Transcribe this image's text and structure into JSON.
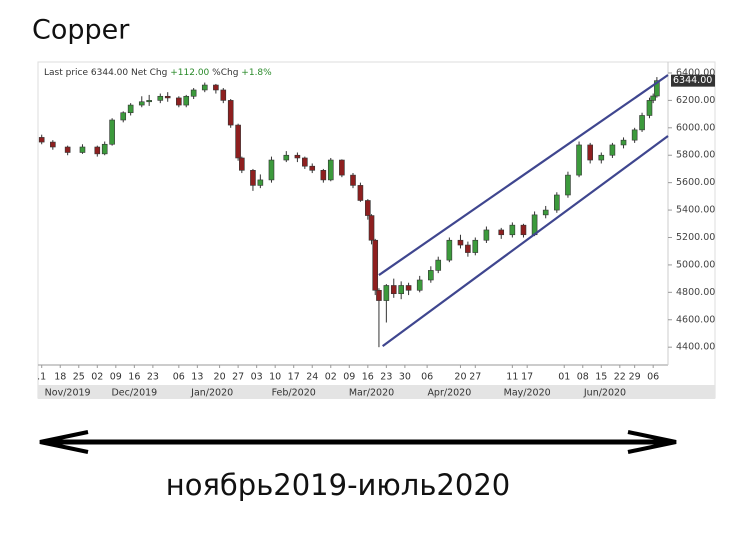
{
  "chart_data": {
    "type": "candlestick",
    "title": "Copper",
    "info": {
      "last_price_text": "Last price",
      "last_price": {
        "value": 6344,
        "label": "6344.00"
      },
      "net_chg_text": "Net Chg",
      "net_chg": {
        "value": 112,
        "label": "+112.00"
      },
      "pct_chg_text": "%Chg",
      "pct_chg": {
        "value": 1.8,
        "label": "+1.8%"
      }
    },
    "x": [
      1,
      4,
      8,
      12,
      16,
      18,
      20,
      23,
      25,
      28,
      30,
      33,
      35,
      38,
      40,
      42,
      45,
      48,
      50,
      52,
      54,
      55,
      58,
      60,
      63,
      67,
      70,
      72,
      74,
      77,
      79,
      82,
      85,
      87,
      89,
      90,
      91,
      92,
      94,
      96,
      98,
      100,
      103,
      106,
      108,
      111,
      114,
      116,
      118,
      121,
      125,
      128,
      131,
      134,
      137,
      140,
      143,
      146,
      149,
      152,
      155,
      158,
      161,
      163,
      165,
      166,
      167
    ],
    "open": [
      5930,
      5896,
      5860,
      5820,
      5860,
      5810,
      5880,
      6057,
      6110,
      6166,
      6190,
      6200,
      6230,
      6218,
      6166,
      6230,
      6276,
      6312,
      6276,
      6200,
      6020,
      5780,
      5690,
      5580,
      5620,
      5765,
      5800,
      5780,
      5720,
      5690,
      5620,
      5765,
      5655,
      5580,
      5470,
      5360,
      5180,
      4815,
      4740,
      4850,
      4790,
      4850,
      4815,
      4890,
      4960,
      5035,
      5180,
      5145,
      5090,
      5180,
      5255,
      5220,
      5290,
      5220,
      5365,
      5400,
      5510,
      5655,
      5875,
      5765,
      5800,
      5875,
      5910,
      5985,
      6090,
      6200,
      6232
    ],
    "high": [
      5950,
      5910,
      5870,
      5880,
      5870,
      5900,
      6070,
      6120,
      6180,
      6230,
      6240,
      6250,
      6260,
      6230,
      6240,
      6290,
      6330,
      6320,
      6290,
      6210,
      6030,
      5790,
      5700,
      5660,
      5790,
      5830,
      5820,
      5790,
      5740,
      5700,
      5780,
      5770,
      5670,
      5600,
      5480,
      5370,
      5190,
      4830,
      4860,
      4900,
      4880,
      4870,
      4920,
      4990,
      5060,
      5200,
      5220,
      5170,
      5200,
      5280,
      5270,
      5310,
      5300,
      5390,
      5430,
      5530,
      5680,
      5900,
      5890,
      5820,
      5890,
      5930,
      6000,
      6110,
      6220,
      6250,
      6370
    ],
    "low": [
      5880,
      5840,
      5800,
      5810,
      5790,
      5800,
      5870,
      6040,
      6090,
      6150,
      6160,
      6180,
      6190,
      6150,
      6150,
      6210,
      6260,
      6250,
      6180,
      6000,
      5760,
      5670,
      5540,
      5560,
      5600,
      5750,
      5750,
      5700,
      5670,
      5600,
      5610,
      5640,
      5560,
      5460,
      5330,
      5150,
      4780,
      4400,
      4580,
      4760,
      4750,
      4780,
      4800,
      4870,
      4940,
      5020,
      5120,
      5060,
      5070,
      5160,
      5190,
      5200,
      5200,
      5210,
      5340,
      5380,
      5490,
      5640,
      5740,
      5740,
      5780,
      5850,
      5890,
      5970,
      6070,
      6180,
      6220
    ],
    "close": [
      5896,
      5860,
      5820,
      5860,
      5810,
      5880,
      6057,
      6110,
      6166,
      6190,
      6200,
      6230,
      6218,
      6166,
      6230,
      6276,
      6312,
      6276,
      6200,
      6020,
      5780,
      5690,
      5580,
      5620,
      5765,
      5800,
      5780,
      5720,
      5690,
      5620,
      5765,
      5655,
      5580,
      5470,
      5360,
      5180,
      4815,
      4740,
      4850,
      4790,
      4850,
      4815,
      4890,
      4960,
      5035,
      5180,
      5145,
      5090,
      5180,
      5255,
      5220,
      5290,
      5220,
      5365,
      5400,
      5510,
      5655,
      5875,
      5765,
      5800,
      5875,
      5910,
      5985,
      6090,
      6200,
      6232,
      6344
    ],
    "up_color": "#3c9a3c",
    "down_color": "#8e1f1f",
    "channel_color": "#3f468f",
    "channel": [
      {
        "x": [
          92,
          170
        ],
        "y": [
          4926,
          6385
        ]
      },
      {
        "x": [
          93,
          170
        ],
        "y": [
          4408,
          5940
        ]
      }
    ],
    "xlim": [
      0,
      170
    ],
    "xticks": [
      {
        "value": 1,
        "label": ".1"
      },
      {
        "value": 6,
        "label": "18"
      },
      {
        "value": 11,
        "label": "25"
      },
      {
        "value": 16,
        "label": "02"
      },
      {
        "value": 21,
        "label": "09"
      },
      {
        "value": 26,
        "label": "16"
      },
      {
        "value": 31,
        "label": "23"
      },
      {
        "value": 38,
        "label": "06"
      },
      {
        "value": 43,
        "label": "13"
      },
      {
        "value": 49,
        "label": "20"
      },
      {
        "value": 54,
        "label": "27"
      },
      {
        "value": 59,
        "label": "03"
      },
      {
        "value": 64,
        "label": "10"
      },
      {
        "value": 69,
        "label": "17"
      },
      {
        "value": 74,
        "label": "24"
      },
      {
        "value": 79,
        "label": "02"
      },
      {
        "value": 84,
        "label": "09"
      },
      {
        "value": 89,
        "label": "16"
      },
      {
        "value": 94,
        "label": "23"
      },
      {
        "value": 99,
        "label": "30"
      },
      {
        "value": 105,
        "label": "06"
      },
      {
        "value": 114,
        "label": "20"
      },
      {
        "value": 118,
        "label": "27"
      },
      {
        "value": 128,
        "label": "11"
      },
      {
        "value": 132,
        "label": "17"
      },
      {
        "value": 142,
        "label": "01"
      },
      {
        "value": 147,
        "label": "08"
      },
      {
        "value": 152,
        "label": "15"
      },
      {
        "value": 157,
        "label": "22"
      },
      {
        "value": 161,
        "label": "29"
      },
      {
        "value": 166,
        "label": "06"
      }
    ],
    "months": [
      {
        "value": 8,
        "label": "Nov/2019"
      },
      {
        "value": 26,
        "label": "Dec/2019"
      },
      {
        "value": 47,
        "label": "Jan/2020"
      },
      {
        "value": 69,
        "label": "Feb/2020"
      },
      {
        "value": 90,
        "label": "Mar/2020"
      },
      {
        "value": 111,
        "label": "Apr/2020"
      },
      {
        "value": 132,
        "label": "May/2020"
      },
      {
        "value": 153,
        "label": "Jun/2020"
      }
    ],
    "ylim": [
      4270,
      6480
    ],
    "yticks": [
      {
        "value": 4400,
        "label": "4400.00"
      },
      {
        "value": 4600,
        "label": "4600.00"
      },
      {
        "value": 4800,
        "label": "4800.00"
      },
      {
        "value": 5000,
        "label": "5000.00"
      },
      {
        "value": 5200,
        "label": "5200.00"
      },
      {
        "value": 5400,
        "label": "5400.00"
      },
      {
        "value": 5600,
        "label": "5600.00"
      },
      {
        "value": 5800,
        "label": "5800.00"
      },
      {
        "value": 6000,
        "label": "6000.00"
      },
      {
        "value": 6200,
        "label": "6200.00"
      },
      {
        "value": 6400,
        "label": "6400.00"
      }
    ],
    "grid": false,
    "caption": "ноябрь2019-июль2020"
  }
}
